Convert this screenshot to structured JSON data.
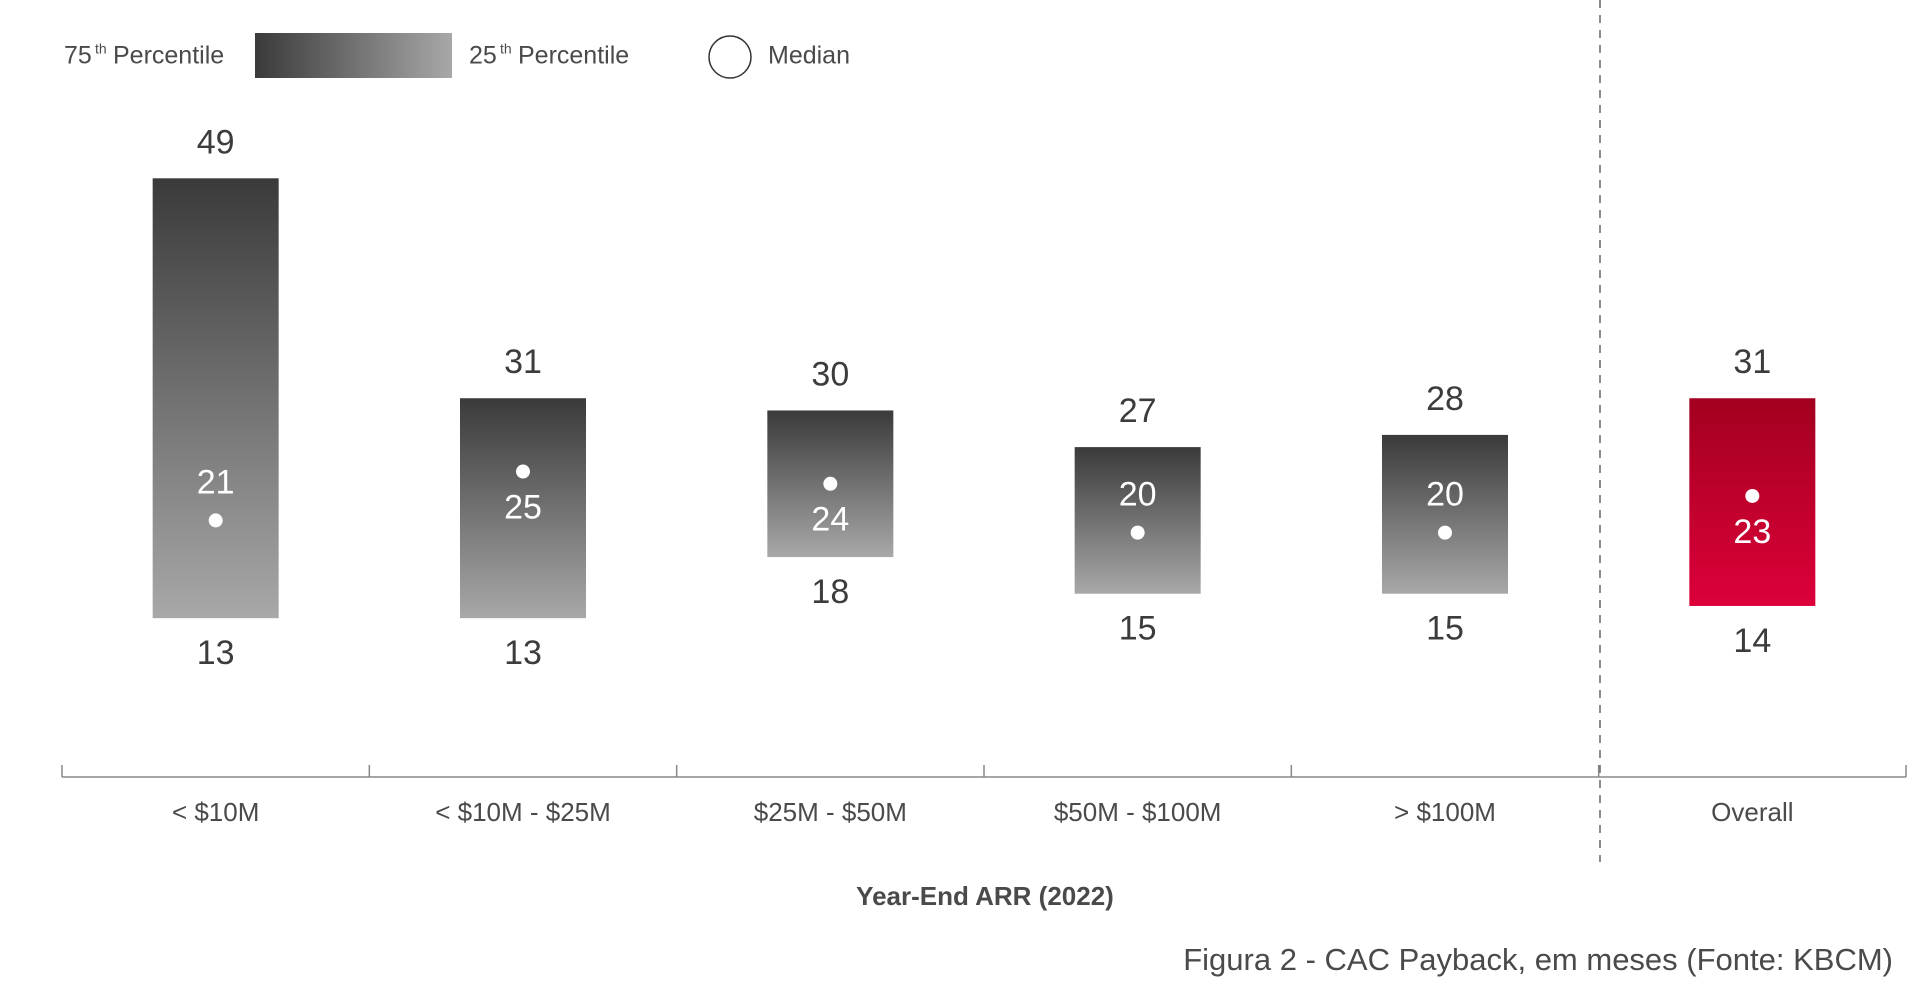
{
  "chart_data": {
    "type": "range-bar",
    "legend": {
      "upper": {
        "number": "75",
        "suffix": "th",
        "label": "Percentile"
      },
      "lower": {
        "number": "25",
        "suffix": "th",
        "label": "Percentile"
      },
      "median": "Median"
    },
    "categories": [
      "< $10M",
      "< $10M - $25M",
      "$25M - $50M",
      "$50M - $100M",
      "> $100M",
      "Overall"
    ],
    "p75": [
      49,
      31,
      30,
      27,
      28,
      31
    ],
    "p25": [
      13,
      13,
      18,
      15,
      15,
      14
    ],
    "medians": [
      21,
      25,
      24,
      20,
      20,
      23
    ],
    "bar_colors": [
      {
        "top": "#3a3a3a",
        "bottom": "#a8a8a8"
      },
      {
        "top": "#3a3a3a",
        "bottom": "#a8a8a8"
      },
      {
        "top": "#3a3a3a",
        "bottom": "#a8a8a8"
      },
      {
        "top": "#3a3a3a",
        "bottom": "#a8a8a8"
      },
      {
        "top": "#3a3a3a",
        "bottom": "#a8a8a8"
      },
      {
        "top": "#a3001f",
        "bottom": "#dc003a"
      }
    ],
    "ylim": [
      0,
      55
    ],
    "xlabel": "Year-End ARR (2022)",
    "caption": "Figura 2 - CAC Payback, em meses (Fonte: KBCM)"
  }
}
